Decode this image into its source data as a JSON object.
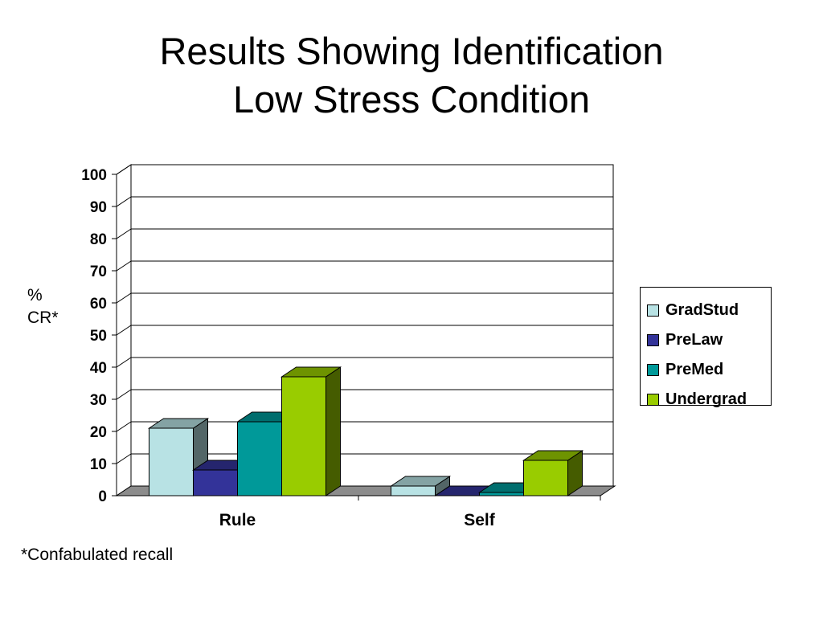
{
  "title": {
    "line1": "Results Showing Identification",
    "line2": "Low Stress Condition"
  },
  "ylabel": {
    "line1": "%",
    "line2": "CR*"
  },
  "footnote": "*Confabulated recall",
  "chart_data": {
    "type": "bar",
    "style": "3d-clustered-column",
    "categories": [
      "Rule",
      "Self"
    ],
    "series": [
      {
        "name": "GradStud",
        "values": [
          21,
          3
        ],
        "color": "#b8e2e4"
      },
      {
        "name": "PreLaw",
        "values": [
          8,
          0
        ],
        "color": "#333399"
      },
      {
        "name": "PreMed",
        "values": [
          23,
          1
        ],
        "color": "#009999"
      },
      {
        "name": "Undergrad",
        "values": [
          37,
          11
        ],
        "color": "#99cc00"
      }
    ],
    "ylim": [
      0,
      100
    ],
    "yticks": [
      0,
      10,
      20,
      30,
      40,
      50,
      60,
      70,
      80,
      90,
      100
    ],
    "grid": true,
    "legend_position": "right"
  }
}
